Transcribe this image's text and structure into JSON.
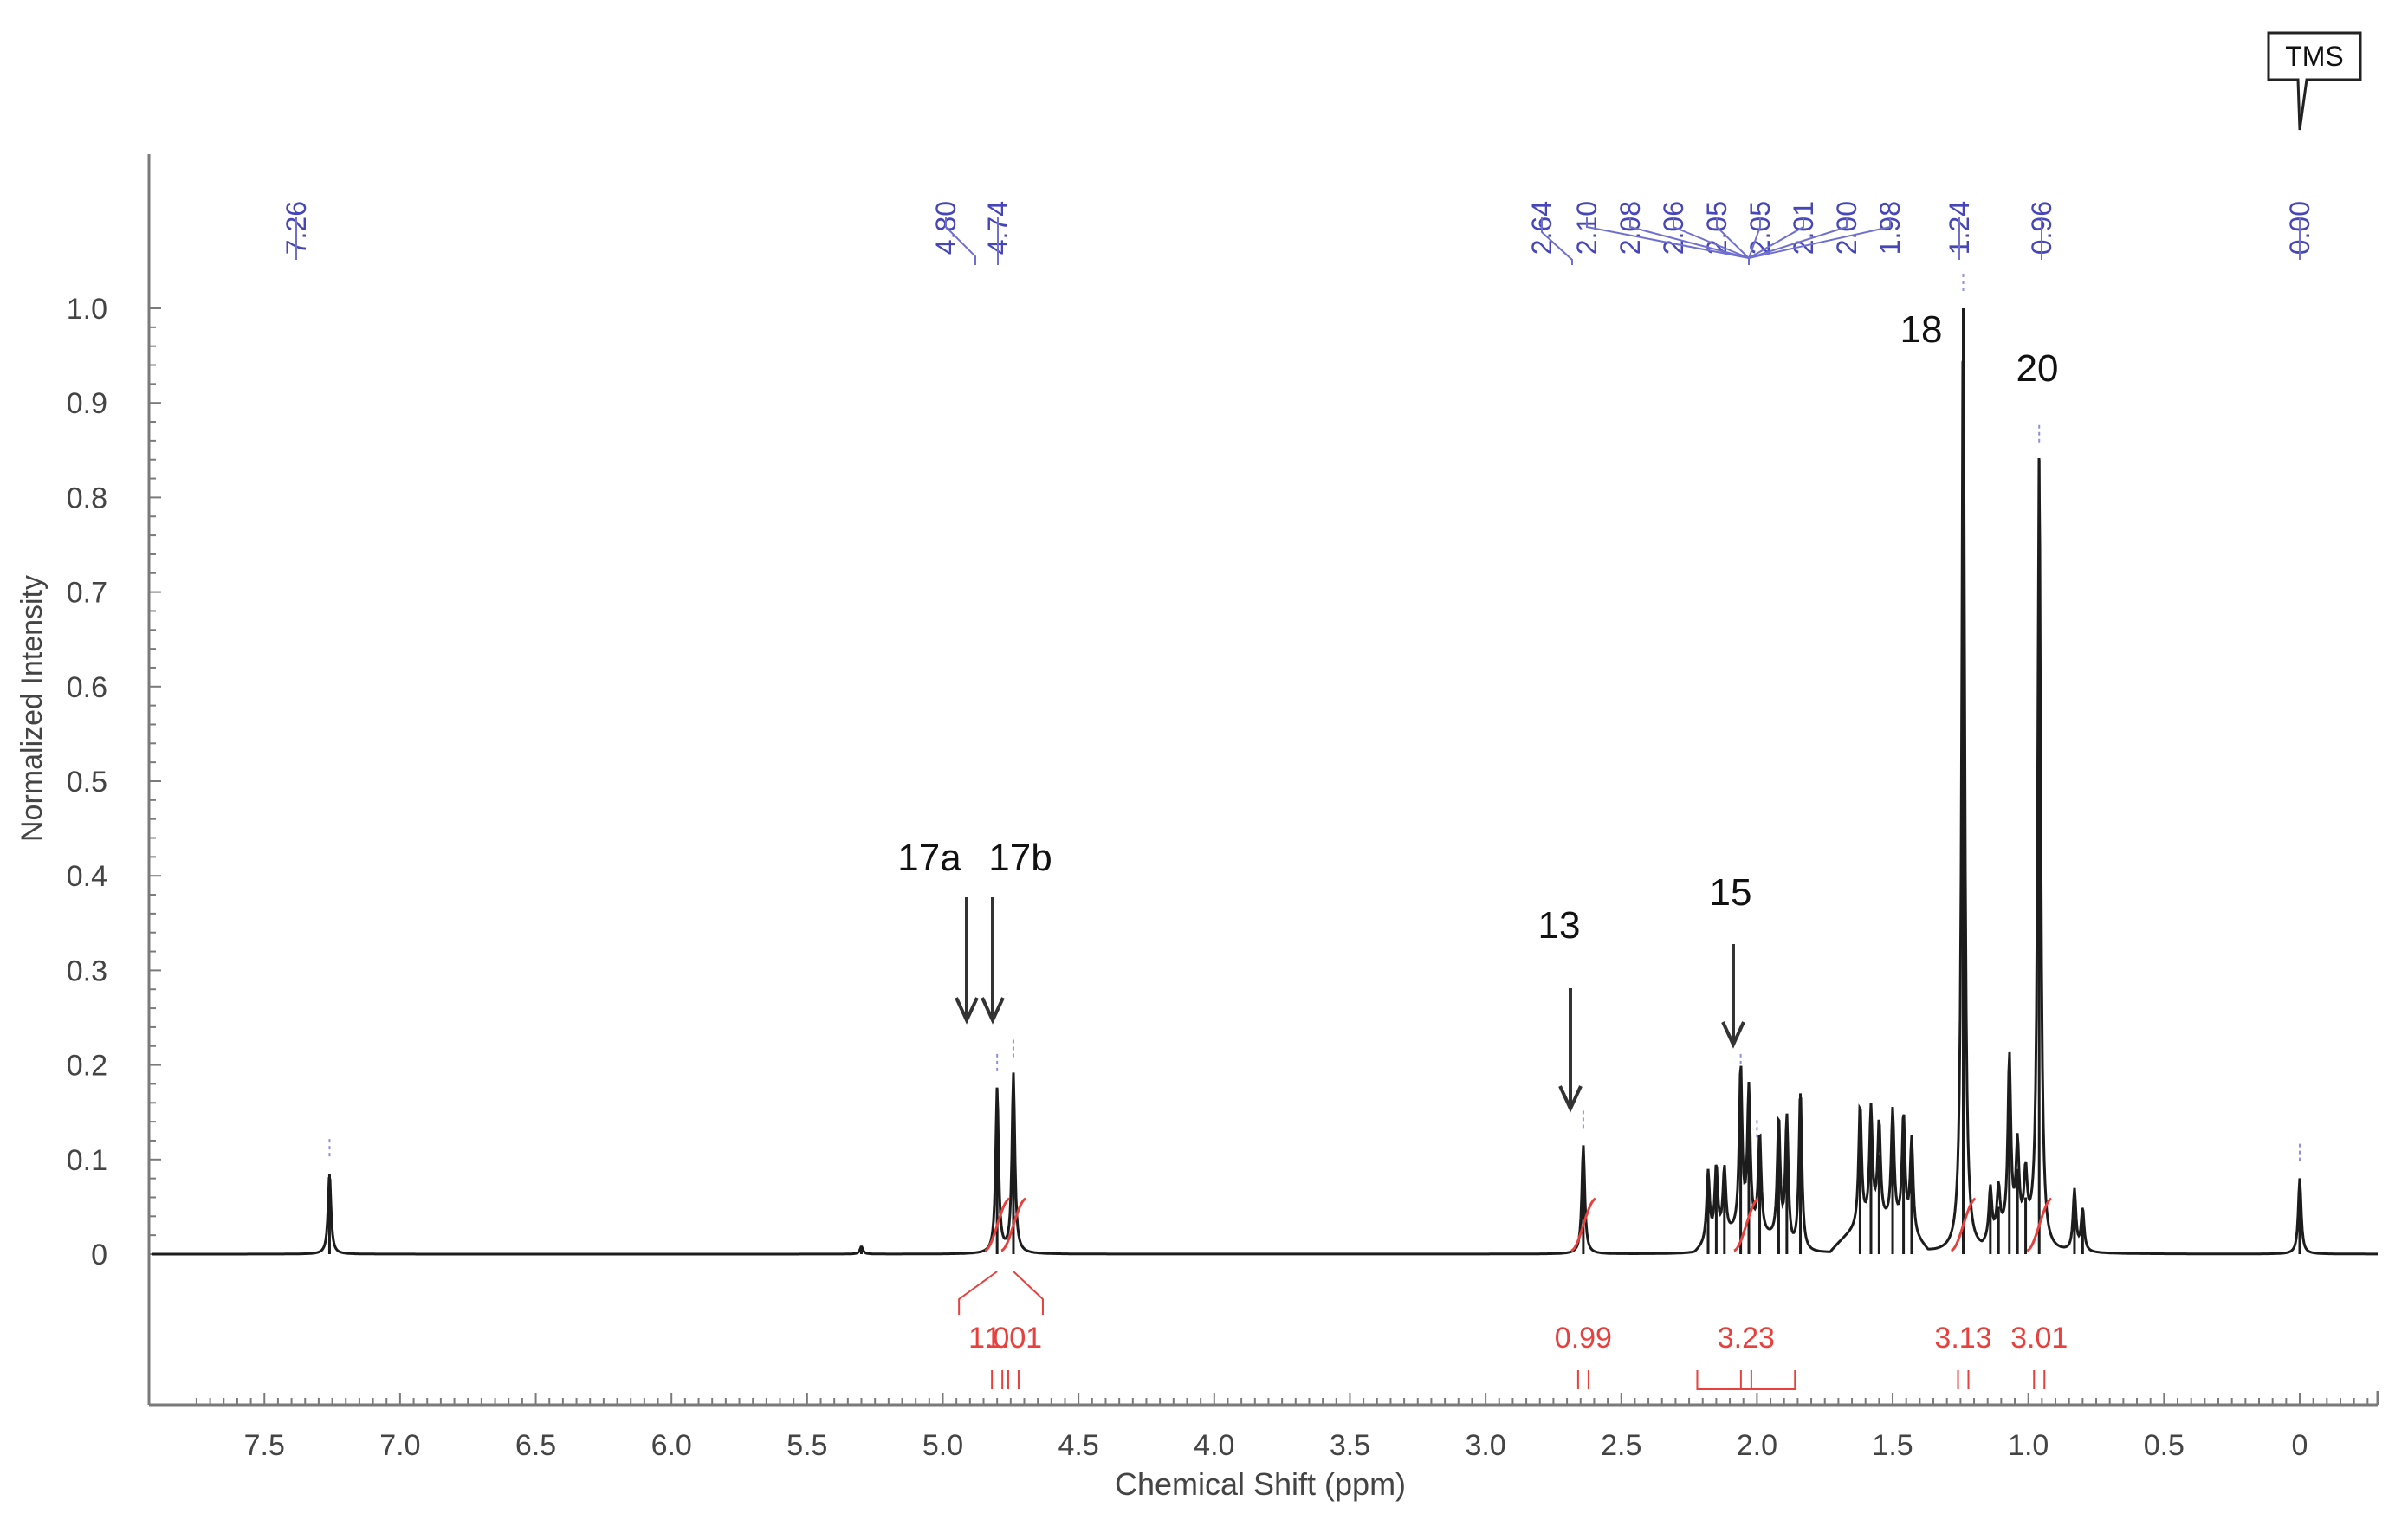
{
  "chart_data": {
    "type": "line",
    "title": "",
    "xlabel": "Chemical Shift (ppm)",
    "ylabel": "Normalized Intensity",
    "xlim": [
      7.78,
      -0.28
    ],
    "ylim": [
      0,
      1.0
    ],
    "x_ticks": [
      "7.5",
      "7.0",
      "6.5",
      "6.0",
      "5.5",
      "5.0",
      "4.5",
      "4.0",
      "3.5",
      "3.0",
      "2.5",
      "2.0",
      "1.5",
      "1.0",
      "0.5",
      "0"
    ],
    "y_ticks": [
      "0",
      "0.1",
      "0.2",
      "0.3",
      "0.4",
      "0.5",
      "0.6",
      "0.7",
      "0.8",
      "0.9",
      "1.0"
    ],
    "peak_labels": [
      "7.26",
      "4.80",
      "4.74",
      "2.64",
      "2.10",
      "2.08",
      "2.06",
      "2.05",
      "2.05",
      "2.01",
      "2.00",
      "1.98",
      "1.24",
      "0.96",
      "0.00"
    ],
    "peaks": [
      {
        "x": 7.26,
        "y": 0.085
      },
      {
        "x": 5.3,
        "y": 0.008
      },
      {
        "x": 4.8,
        "y": 0.175
      },
      {
        "x": 4.74,
        "y": 0.19
      },
      {
        "x": 2.64,
        "y": 0.115
      },
      {
        "x": 2.18,
        "y": 0.075
      },
      {
        "x": 2.15,
        "y": 0.075
      },
      {
        "x": 2.12,
        "y": 0.07
      },
      {
        "x": 2.06,
        "y": 0.175
      },
      {
        "x": 2.03,
        "y": 0.15
      },
      {
        "x": 1.99,
        "y": 0.105
      },
      {
        "x": 1.92,
        "y": 0.13
      },
      {
        "x": 1.89,
        "y": 0.135
      },
      {
        "x": 1.84,
        "y": 0.17
      },
      {
        "x": 1.62,
        "y": 0.13
      },
      {
        "x": 1.58,
        "y": 0.12
      },
      {
        "x": 1.55,
        "y": 0.105
      },
      {
        "x": 1.5,
        "y": 0.12
      },
      {
        "x": 1.46,
        "y": 0.12
      },
      {
        "x": 1.43,
        "y": 0.1
      },
      {
        "x": 1.24,
        "y": 1.0
      },
      {
        "x": 1.14,
        "y": 0.055
      },
      {
        "x": 1.11,
        "y": 0.05
      },
      {
        "x": 1.07,
        "y": 0.185
      },
      {
        "x": 1.04,
        "y": 0.09
      },
      {
        "x": 1.01,
        "y": 0.06
      },
      {
        "x": 0.96,
        "y": 0.84
      },
      {
        "x": 0.83,
        "y": 0.065
      },
      {
        "x": 0.8,
        "y": 0.045
      },
      {
        "x": 0.0,
        "y": 0.08
      }
    ],
    "integrals": [
      {
        "value": "1.00",
        "center": 4.8
      },
      {
        "value": "1.01",
        "center": 4.74
      },
      {
        "value": "0.99",
        "center": 2.64
      },
      {
        "value": "3.23",
        "center": 2.04
      },
      {
        "value": "3.13",
        "center": 1.24
      },
      {
        "value": "3.01",
        "center": 0.96
      }
    ],
    "annotations": [
      {
        "label": "17a",
        "x": 4.8
      },
      {
        "label": "17b",
        "x": 4.74
      },
      {
        "label": "13",
        "x": 2.64
      },
      {
        "label": "15",
        "x": 2.06
      },
      {
        "label": "18",
        "x": 1.24
      },
      {
        "label": "20",
        "x": 0.96
      }
    ],
    "reference": {
      "label": "TMS",
      "x": 0.0
    }
  }
}
